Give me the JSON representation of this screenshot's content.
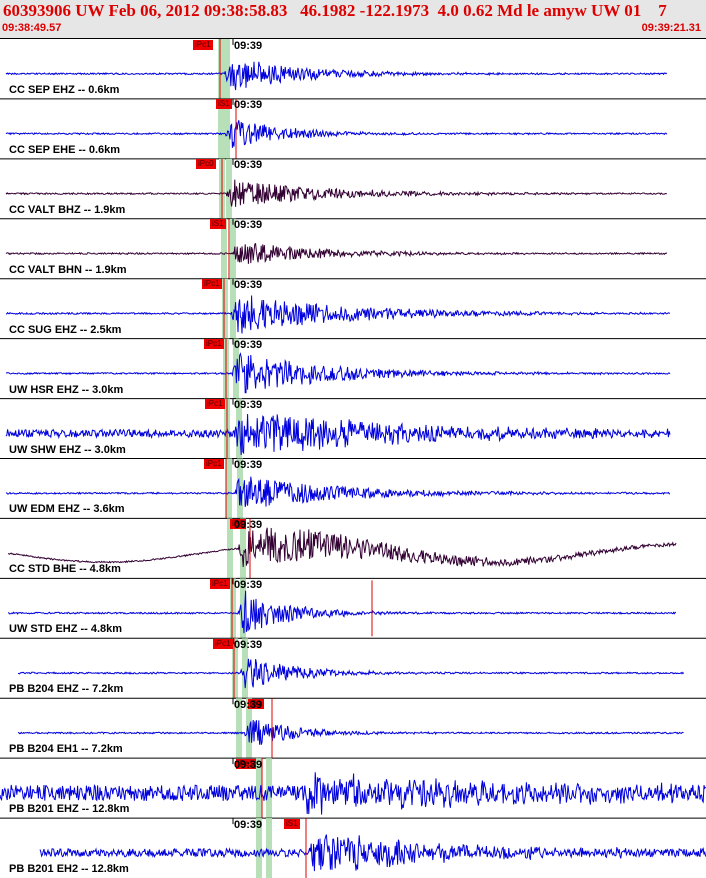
{
  "header": {
    "title": "60393906 UW Feb 06, 2012 09:38:58.83   46.1982 -122.1973  4.0 0.62 Md le amyw UW 01    7",
    "start_time": "09:38:49.57",
    "end_time": "09:39:21.31"
  },
  "colors": {
    "header_bg": "#e6e6e6",
    "header_text": "#dd0000",
    "trace_blue": "#0000dd",
    "trace_dark": "#330033",
    "pick_window": "#b8e0b8",
    "pick_tag": "#ee0000"
  },
  "traces": [
    {
      "label": "CC SEP EHZ -- 0.6km",
      "tick_label": "09:39",
      "pick": "iPc1",
      "color": "#0000dd"
    },
    {
      "label": "CC SEP EHE -- 0.6km",
      "tick_label": "09:39",
      "pick": "iS1",
      "color": "#0000dd"
    },
    {
      "label": "CC VALT BHZ -- 1.9km",
      "tick_label": "09:39",
      "pick": "iPc0",
      "color": "#330033"
    },
    {
      "label": "CC VALT BHN -- 1.9km",
      "tick_label": "09:39",
      "pick": "iS1",
      "color": "#330033"
    },
    {
      "label": "CC SUG EHZ -- 2.5km",
      "tick_label": "09:39",
      "pick": "iPc1",
      "color": "#0000dd"
    },
    {
      "label": "UW HSR EHZ -- 3.0km",
      "tick_label": "09:39",
      "pick": "iPc1",
      "color": "#0000dd"
    },
    {
      "label": "UW SHW EHZ -- 3.0km",
      "tick_label": "09:39",
      "pick": "iPc1",
      "color": "#0000dd"
    },
    {
      "label": "UW EDM EHZ -- 3.6km",
      "tick_label": "09:39",
      "pick": "iPc1",
      "color": "#0000dd"
    },
    {
      "label": "CC STD BHE -- 4.8km",
      "tick_label": "09:39",
      "pick": "iS1",
      "color": "#330033"
    },
    {
      "label": "UW STD EHZ -- 4.8km",
      "tick_label": "09:39",
      "pick": "iPc1",
      "color": "#0000dd"
    },
    {
      "label": "PB B204 EHZ -- 7.2km",
      "tick_label": "09:39",
      "pick": "iPc1",
      "color": "#0000dd"
    },
    {
      "label": "PB B204 EH1 -- 7.2km",
      "tick_label": "09:39",
      "pick": "iS1",
      "color": "#0000dd"
    },
    {
      "label": "PB B201 EHZ -- 12.8km",
      "tick_label": "09:39",
      "pick": "iPc1",
      "color": "#0000dd"
    },
    {
      "label": "PB B201 EH2 -- 12.8km",
      "tick_label": "09:39",
      "pick": "iS1",
      "color": "#0000dd"
    }
  ]
}
